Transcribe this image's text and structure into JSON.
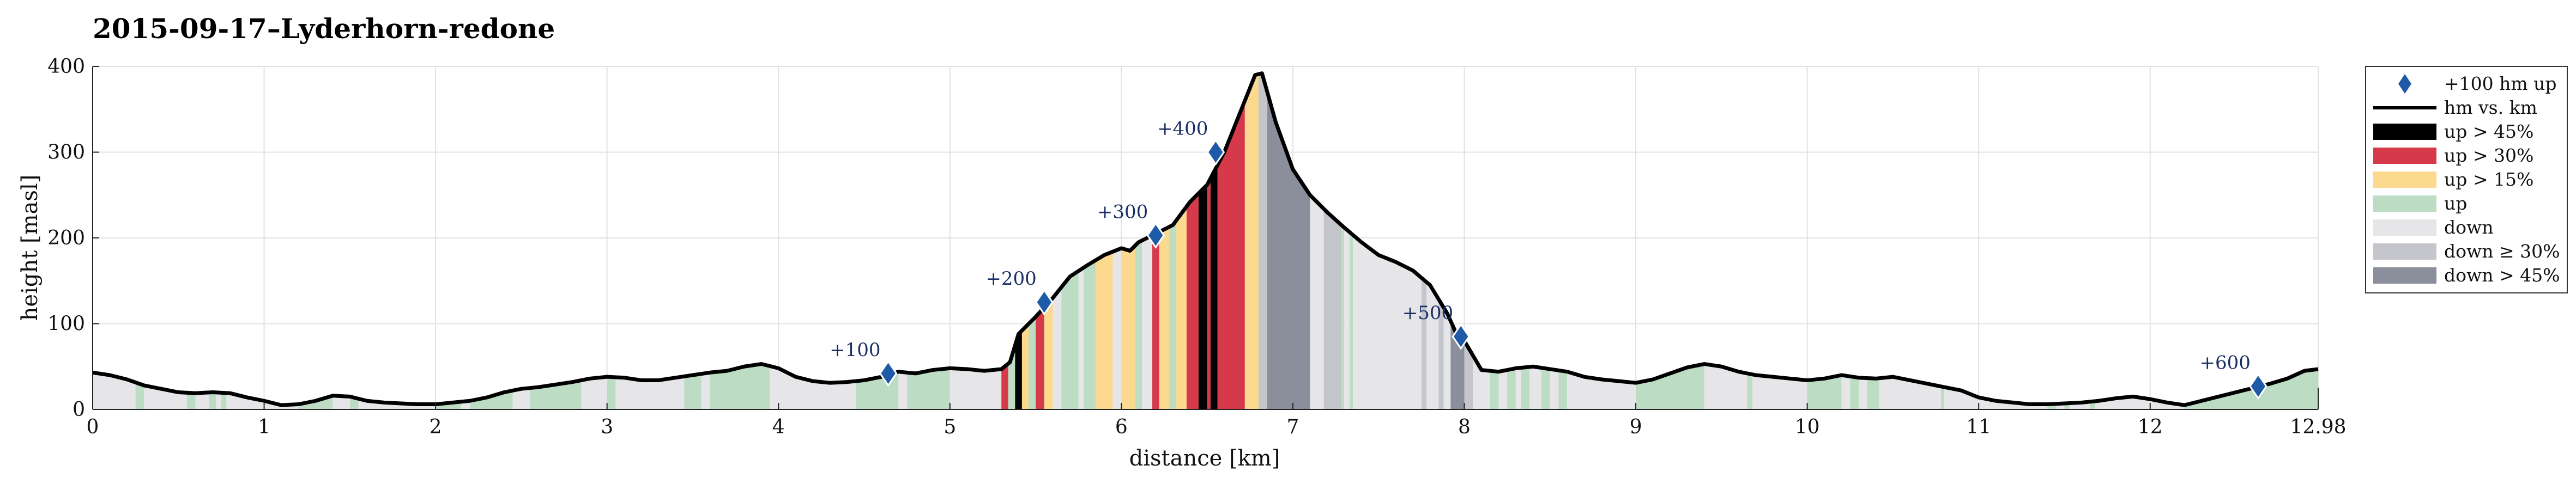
{
  "chart_data": {
    "type": "area",
    "title": "2015-09-17–Lyderhorn-redone",
    "xlabel": "distance [km]",
    "ylabel": "height [masl]",
    "xlim": [
      0,
      12.98
    ],
    "ylim": [
      0,
      400
    ],
    "xticks": [
      0,
      1,
      2,
      3,
      4,
      5,
      6,
      7,
      8,
      9,
      10,
      11,
      12,
      12.98
    ],
    "xtick_labels": [
      "0",
      "1",
      "2",
      "3",
      "4",
      "5",
      "6",
      "7",
      "8",
      "9",
      "10",
      "11",
      "12",
      "12.98"
    ],
    "yticks": [
      0,
      100,
      200,
      300,
      400
    ],
    "ytick_labels": [
      "0",
      "100",
      "200",
      "300",
      "400"
    ],
    "grid": true,
    "legend_position": "outside-right",
    "profile": {
      "name": "hm vs. km",
      "x": [
        0,
        0.1,
        0.2,
        0.3,
        0.4,
        0.5,
        0.6,
        0.7,
        0.8,
        0.9,
        1.0,
        1.1,
        1.2,
        1.3,
        1.4,
        1.5,
        1.6,
        1.7,
        1.8,
        1.9,
        2.0,
        2.1,
        2.2,
        2.3,
        2.4,
        2.5,
        2.6,
        2.7,
        2.8,
        2.9,
        3.0,
        3.1,
        3.2,
        3.3,
        3.4,
        3.5,
        3.6,
        3.7,
        3.8,
        3.9,
        4.0,
        4.1,
        4.2,
        4.3,
        4.4,
        4.5,
        4.6,
        4.7,
        4.8,
        4.9,
        5.0,
        5.1,
        5.2,
        5.3,
        5.35,
        5.4,
        5.5,
        5.6,
        5.7,
        5.8,
        5.9,
        6.0,
        6.05,
        6.1,
        6.2,
        6.3,
        6.4,
        6.5,
        6.6,
        6.7,
        6.78,
        6.82,
        6.9,
        7.0,
        7.1,
        7.2,
        7.3,
        7.4,
        7.5,
        7.6,
        7.7,
        7.8,
        7.9,
        7.95,
        8.0,
        8.1,
        8.2,
        8.3,
        8.4,
        8.5,
        8.6,
        8.7,
        8.8,
        8.9,
        9.0,
        9.1,
        9.2,
        9.3,
        9.4,
        9.5,
        9.6,
        9.7,
        9.8,
        9.9,
        10.0,
        10.1,
        10.2,
        10.3,
        10.4,
        10.5,
        10.6,
        10.7,
        10.8,
        10.9,
        11.0,
        11.1,
        11.2,
        11.3,
        11.4,
        11.5,
        11.6,
        11.7,
        11.8,
        11.9,
        12.0,
        12.1,
        12.2,
        12.3,
        12.4,
        12.5,
        12.6,
        12.7,
        12.8,
        12.9,
        12.98
      ],
      "y": [
        43,
        40,
        35,
        28,
        24,
        20,
        19,
        20,
        19,
        14,
        10,
        5,
        6,
        10,
        16,
        15,
        10,
        8,
        7,
        6,
        6,
        8,
        10,
        14,
        20,
        24,
        26,
        29,
        32,
        36,
        38,
        37,
        34,
        34,
        37,
        40,
        43,
        45,
        50,
        53,
        48,
        38,
        33,
        31,
        32,
        34,
        38,
        44,
        42,
        46,
        48,
        47,
        45,
        47,
        55,
        88,
        108,
        130,
        155,
        168,
        180,
        188,
        185,
        195,
        205,
        215,
        242,
        262,
        300,
        350,
        390,
        392,
        335,
        280,
        250,
        230,
        212,
        195,
        180,
        172,
        162,
        145,
        112,
        90,
        80,
        46,
        44,
        48,
        50,
        47,
        44,
        38,
        35,
        33,
        31,
        35,
        42,
        49,
        53,
        50,
        44,
        40,
        38,
        36,
        34,
        36,
        40,
        37,
        36,
        38,
        34,
        30,
        26,
        22,
        14,
        10,
        8,
        6,
        6,
        7,
        8,
        10,
        13,
        15,
        12,
        8,
        5,
        10,
        15,
        20,
        25,
        30,
        36,
        45,
        47
      ]
    },
    "segments": [
      {
        "x0": 0,
        "x1": 0.25,
        "cls": "down"
      },
      {
        "x0": 0.25,
        "x1": 0.3,
        "cls": "up"
      },
      {
        "x0": 0.3,
        "x1": 0.55,
        "cls": "down"
      },
      {
        "x0": 0.55,
        "x1": 0.6,
        "cls": "up"
      },
      {
        "x0": 0.6,
        "x1": 0.68,
        "cls": "down"
      },
      {
        "x0": 0.68,
        "x1": 0.72,
        "cls": "up"
      },
      {
        "x0": 0.72,
        "x1": 0.75,
        "cls": "down"
      },
      {
        "x0": 0.75,
        "x1": 0.78,
        "cls": "up"
      },
      {
        "x0": 0.78,
        "x1": 1.2,
        "cls": "down"
      },
      {
        "x0": 1.2,
        "x1": 1.4,
        "cls": "up"
      },
      {
        "x0": 1.4,
        "x1": 1.5,
        "cls": "down"
      },
      {
        "x0": 1.5,
        "x1": 1.55,
        "cls": "up"
      },
      {
        "x0": 1.55,
        "x1": 2.0,
        "cls": "down"
      },
      {
        "x0": 2.0,
        "x1": 2.15,
        "cls": "up"
      },
      {
        "x0": 2.15,
        "x1": 2.2,
        "cls": "down"
      },
      {
        "x0": 2.2,
        "x1": 2.45,
        "cls": "up"
      },
      {
        "x0": 2.45,
        "x1": 2.55,
        "cls": "down"
      },
      {
        "x0": 2.55,
        "x1": 2.85,
        "cls": "up"
      },
      {
        "x0": 2.85,
        "x1": 3.0,
        "cls": "down"
      },
      {
        "x0": 3.0,
        "x1": 3.05,
        "cls": "up"
      },
      {
        "x0": 3.05,
        "x1": 3.45,
        "cls": "down"
      },
      {
        "x0": 3.45,
        "x1": 3.55,
        "cls": "up"
      },
      {
        "x0": 3.55,
        "x1": 3.6,
        "cls": "down"
      },
      {
        "x0": 3.6,
        "x1": 3.95,
        "cls": "up"
      },
      {
        "x0": 3.95,
        "x1": 4.45,
        "cls": "down"
      },
      {
        "x0": 4.45,
        "x1": 4.7,
        "cls": "up"
      },
      {
        "x0": 4.7,
        "x1": 4.75,
        "cls": "down"
      },
      {
        "x0": 4.75,
        "x1": 5.0,
        "cls": "up"
      },
      {
        "x0": 5.0,
        "x1": 5.3,
        "cls": "down"
      },
      {
        "x0": 5.3,
        "x1": 5.34,
        "cls": "up30"
      },
      {
        "x0": 5.34,
        "x1": 5.38,
        "cls": "up"
      },
      {
        "x0": 5.38,
        "x1": 5.42,
        "cls": "up45"
      },
      {
        "x0": 5.42,
        "x1": 5.46,
        "cls": "up15"
      },
      {
        "x0": 5.46,
        "x1": 5.5,
        "cls": "up"
      },
      {
        "x0": 5.5,
        "x1": 5.55,
        "cls": "up30"
      },
      {
        "x0": 5.55,
        "x1": 5.6,
        "cls": "up15"
      },
      {
        "x0": 5.6,
        "x1": 5.65,
        "cls": "down"
      },
      {
        "x0": 5.65,
        "x1": 5.75,
        "cls": "up"
      },
      {
        "x0": 5.75,
        "x1": 5.78,
        "cls": "down"
      },
      {
        "x0": 5.78,
        "x1": 5.85,
        "cls": "up"
      },
      {
        "x0": 5.85,
        "x1": 5.95,
        "cls": "up15"
      },
      {
        "x0": 5.95,
        "x1": 6.0,
        "cls": "down"
      },
      {
        "x0": 6.0,
        "x1": 6.08,
        "cls": "up15"
      },
      {
        "x0": 6.08,
        "x1": 6.12,
        "cls": "up"
      },
      {
        "x0": 6.12,
        "x1": 6.18,
        "cls": "down"
      },
      {
        "x0": 6.18,
        "x1": 6.22,
        "cls": "up30"
      },
      {
        "x0": 6.22,
        "x1": 6.28,
        "cls": "up15"
      },
      {
        "x0": 6.28,
        "x1": 6.32,
        "cls": "up"
      },
      {
        "x0": 6.32,
        "x1": 6.38,
        "cls": "up15"
      },
      {
        "x0": 6.38,
        "x1": 6.45,
        "cls": "up30"
      },
      {
        "x0": 6.45,
        "x1": 6.5,
        "cls": "up45"
      },
      {
        "x0": 6.5,
        "x1": 6.52,
        "cls": "up30"
      },
      {
        "x0": 6.52,
        "x1": 6.56,
        "cls": "up45"
      },
      {
        "x0": 6.56,
        "x1": 6.72,
        "cls": "up30"
      },
      {
        "x0": 6.72,
        "x1": 6.8,
        "cls": "up15"
      },
      {
        "x0": 6.8,
        "x1": 6.85,
        "cls": "down30"
      },
      {
        "x0": 6.85,
        "x1": 7.1,
        "cls": "down45"
      },
      {
        "x0": 7.1,
        "x1": 7.18,
        "cls": "down"
      },
      {
        "x0": 7.18,
        "x1": 7.28,
        "cls": "down30"
      },
      {
        "x0": 7.28,
        "x1": 7.3,
        "cls": "up"
      },
      {
        "x0": 7.3,
        "x1": 7.33,
        "cls": "down"
      },
      {
        "x0": 7.33,
        "x1": 7.35,
        "cls": "up"
      },
      {
        "x0": 7.35,
        "x1": 7.75,
        "cls": "down"
      },
      {
        "x0": 7.75,
        "x1": 7.78,
        "cls": "down30"
      },
      {
        "x0": 7.78,
        "x1": 7.85,
        "cls": "down"
      },
      {
        "x0": 7.85,
        "x1": 7.88,
        "cls": "down30"
      },
      {
        "x0": 7.88,
        "x1": 7.92,
        "cls": "down"
      },
      {
        "x0": 7.92,
        "x1": 8.0,
        "cls": "down45"
      },
      {
        "x0": 8.0,
        "x1": 8.05,
        "cls": "down30"
      },
      {
        "x0": 8.05,
        "x1": 8.15,
        "cls": "down"
      },
      {
        "x0": 8.15,
        "x1": 8.2,
        "cls": "up"
      },
      {
        "x0": 8.2,
        "x1": 8.25,
        "cls": "down"
      },
      {
        "x0": 8.25,
        "x1": 8.3,
        "cls": "up"
      },
      {
        "x0": 8.3,
        "x1": 8.33,
        "cls": "down"
      },
      {
        "x0": 8.33,
        "x1": 8.38,
        "cls": "up"
      },
      {
        "x0": 8.38,
        "x1": 8.45,
        "cls": "down"
      },
      {
        "x0": 8.45,
        "x1": 8.5,
        "cls": "up"
      },
      {
        "x0": 8.5,
        "x1": 8.55,
        "cls": "down"
      },
      {
        "x0": 8.55,
        "x1": 8.6,
        "cls": "up"
      },
      {
        "x0": 8.6,
        "x1": 9.0,
        "cls": "down"
      },
      {
        "x0": 9.0,
        "x1": 9.4,
        "cls": "up"
      },
      {
        "x0": 9.4,
        "x1": 9.65,
        "cls": "down"
      },
      {
        "x0": 9.65,
        "x1": 9.68,
        "cls": "up"
      },
      {
        "x0": 9.68,
        "x1": 10.0,
        "cls": "down"
      },
      {
        "x0": 10.0,
        "x1": 10.2,
        "cls": "up"
      },
      {
        "x0": 10.2,
        "x1": 10.25,
        "cls": "down"
      },
      {
        "x0": 10.25,
        "x1": 10.3,
        "cls": "up"
      },
      {
        "x0": 10.3,
        "x1": 10.35,
        "cls": "down"
      },
      {
        "x0": 10.35,
        "x1": 10.42,
        "cls": "up"
      },
      {
        "x0": 10.42,
        "x1": 10.78,
        "cls": "down"
      },
      {
        "x0": 10.78,
        "x1": 10.8,
        "cls": "up"
      },
      {
        "x0": 10.8,
        "x1": 11.4,
        "cls": "down"
      },
      {
        "x0": 11.4,
        "x1": 11.45,
        "cls": "up"
      },
      {
        "x0": 11.45,
        "x1": 11.5,
        "cls": "down"
      },
      {
        "x0": 11.5,
        "x1": 11.53,
        "cls": "up"
      },
      {
        "x0": 11.53,
        "x1": 11.65,
        "cls": "down"
      },
      {
        "x0": 11.65,
        "x1": 11.68,
        "cls": "up"
      },
      {
        "x0": 11.68,
        "x1": 12.2,
        "cls": "down"
      },
      {
        "x0": 12.2,
        "x1": 12.98,
        "cls": "up"
      }
    ],
    "markers": [
      {
        "x": 4.64,
        "y": 42,
        "label": "+100"
      },
      {
        "x": 5.55,
        "y": 125,
        "label": "+200"
      },
      {
        "x": 6.2,
        "y": 203,
        "label": "+300"
      },
      {
        "x": 6.55,
        "y": 300,
        "label": "+400"
      },
      {
        "x": 7.98,
        "y": 85,
        "label": "+500"
      },
      {
        "x": 12.63,
        "y": 27,
        "label": "+600"
      }
    ],
    "legend": [
      {
        "key": "marker",
        "label": "+100 hm up"
      },
      {
        "key": "line",
        "label": "hm vs. km"
      },
      {
        "key": "up45",
        "label": "up > 45%"
      },
      {
        "key": "up30",
        "label": "up > 30%"
      },
      {
        "key": "up15",
        "label": "up > 15%"
      },
      {
        "key": "up",
        "label": "up"
      },
      {
        "key": "down",
        "label": "down"
      },
      {
        "key": "down30",
        "label": "down ≥ 30%"
      },
      {
        "key": "down45",
        "label": "down > 45%"
      }
    ],
    "colors": {
      "up45": "#000000",
      "up30": "#d63a4a",
      "up15": "#fbd98e",
      "up": "#bcdcc4",
      "down": "#e6e6e9",
      "down30": "#c4c6cc",
      "down45": "#8b8f9c",
      "line": "#000000",
      "marker": "#1f5aa8"
    }
  }
}
